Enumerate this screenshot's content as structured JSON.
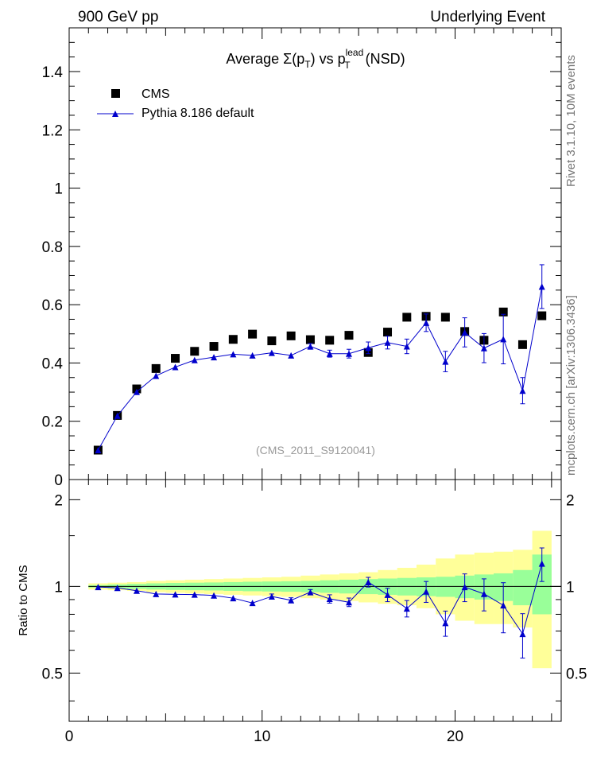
{
  "header": {
    "left": "900 GeV pp",
    "right": "Underlying Event"
  },
  "side_labels": {
    "rivet": "Rivet 3.1.10,  10M events",
    "mcplots": "mcplots.cern.ch [arXiv:1306.3436]"
  },
  "title": {
    "prefix": "Average ",
    "sigma": "Σ(p",
    "sigma_sub": "T",
    "sigma_close": ")",
    "vs": " vs p",
    "lead_sup": "lead",
    "lead_sub": "T",
    "suffix": " (NSD)"
  },
  "watermark": "(CMS_2011_S9120041)",
  "legend": {
    "data_label": "CMS",
    "mc_label": "Pythia 8.186 default"
  },
  "colors": {
    "data": "#000000",
    "mc": "#0000cc",
    "band_inner": "#99ff99",
    "band_outer": "#ffff99"
  },
  "chart_data": [
    {
      "type": "scatter",
      "panel": "main",
      "xlim": [
        0,
        25.5
      ],
      "ylim": [
        0,
        1.55
      ],
      "yticks": [
        0,
        0.2,
        0.4,
        0.6,
        0.8,
        1,
        1.2,
        1.4
      ],
      "ytick_labels": [
        "0",
        "0.2",
        "0.4",
        "0.6",
        "0.8",
        "1",
        "1.2",
        "1.4"
      ],
      "series": [
        {
          "name": "CMS",
          "x": [
            1.5,
            2.5,
            3.5,
            4.5,
            5.5,
            6.5,
            7.5,
            8.5,
            9.5,
            10.5,
            11.5,
            12.5,
            13.5,
            14.5,
            15.5,
            16.5,
            17.5,
            18.5,
            19.5,
            20.5,
            21.5,
            22.5,
            23.5,
            24.5
          ],
          "y": [
            0.101,
            0.22,
            0.311,
            0.381,
            0.416,
            0.44,
            0.457,
            0.481,
            0.499,
            0.476,
            0.493,
            0.48,
            0.478,
            0.495,
            0.436,
            0.506,
            0.557,
            0.56,
            0.557,
            0.508,
            0.478,
            0.575,
            0.463,
            0.562
          ]
        },
        {
          "name": "Pythia 8.186 default",
          "x": [
            1.5,
            2.5,
            3.5,
            4.5,
            5.5,
            6.5,
            7.5,
            8.5,
            9.5,
            10.5,
            11.5,
            12.5,
            13.5,
            14.5,
            15.5,
            16.5,
            17.5,
            18.5,
            19.5,
            20.5,
            21.5,
            22.5,
            23.5,
            24.5
          ],
          "y": [
            0.101,
            0.219,
            0.301,
            0.356,
            0.386,
            0.41,
            0.42,
            0.43,
            0.426,
            0.435,
            0.426,
            0.457,
            0.432,
            0.432,
            0.452,
            0.47,
            0.457,
            0.538,
            0.405,
            0.505,
            0.451,
            0.482,
            0.305,
            0.662
          ],
          "yerr": [
            0.002,
            0.002,
            0.003,
            0.004,
            0.004,
            0.004,
            0.005,
            0.006,
            0.006,
            0.007,
            0.008,
            0.01,
            0.012,
            0.015,
            0.02,
            0.022,
            0.025,
            0.03,
            0.035,
            0.05,
            0.05,
            0.085,
            0.045,
            0.075
          ]
        }
      ]
    },
    {
      "type": "scatter",
      "panel": "ratio",
      "ylabel": "Ratio to CMS",
      "xlim": [
        0,
        25.5
      ],
      "ylim": [
        0.34,
        2.35
      ],
      "yticks": [
        0.5,
        1,
        2
      ],
      "ytick_labels": [
        "0.5",
        "1",
        "2"
      ],
      "xticks": [
        0,
        10,
        20
      ],
      "xtick_labels": [
        "0",
        "10",
        "20"
      ],
      "series": [
        {
          "name": "Pythia 8.186 default",
          "x": [
            1.5,
            2.5,
            3.5,
            4.5,
            5.5,
            6.5,
            7.5,
            8.5,
            9.5,
            10.5,
            11.5,
            12.5,
            13.5,
            14.5,
            15.5,
            16.5,
            17.5,
            18.5,
            19.5,
            20.5,
            21.5,
            22.5,
            23.5,
            24.5
          ],
          "y": [
            0.995,
            0.988,
            0.966,
            0.941,
            0.938,
            0.937,
            0.93,
            0.91,
            0.876,
            0.923,
            0.895,
            0.955,
            0.905,
            0.881,
            1.035,
            0.935,
            0.838,
            0.96,
            0.746,
            0.995,
            0.942,
            0.86,
            0.684,
            1.2
          ],
          "yerr": [
            0.006,
            0.008,
            0.01,
            0.012,
            0.012,
            0.012,
            0.014,
            0.015,
            0.016,
            0.018,
            0.018,
            0.02,
            0.03,
            0.03,
            0.04,
            0.05,
            0.055,
            0.08,
            0.075,
            0.11,
            0.12,
            0.17,
            0.12,
            0.16
          ]
        }
      ],
      "bands": {
        "x_edges": [
          1,
          2,
          3,
          4,
          5,
          6,
          7,
          8,
          9,
          10,
          11,
          12,
          13,
          14,
          15,
          16,
          17,
          18,
          19,
          20,
          21,
          22,
          23,
          24,
          25
        ],
        "inner_lo": [
          0.99,
          0.985,
          0.98,
          0.975,
          0.972,
          0.97,
          0.968,
          0.965,
          0.962,
          0.96,
          0.958,
          0.955,
          0.95,
          0.945,
          0.94,
          0.935,
          0.93,
          0.925,
          0.92,
          0.91,
          0.9,
          0.89,
          0.86,
          0.8
        ],
        "inner_hi": [
          1.01,
          1.015,
          1.02,
          1.025,
          1.028,
          1.03,
          1.032,
          1.035,
          1.038,
          1.04,
          1.042,
          1.045,
          1.05,
          1.055,
          1.06,
          1.065,
          1.07,
          1.075,
          1.08,
          1.09,
          1.1,
          1.11,
          1.14,
          1.29
        ],
        "outer_lo": [
          0.975,
          0.97,
          0.965,
          0.955,
          0.95,
          0.945,
          0.94,
          0.935,
          0.93,
          0.925,
          0.92,
          0.91,
          0.9,
          0.89,
          0.88,
          0.87,
          0.86,
          0.84,
          0.8,
          0.76,
          0.74,
          0.74,
          0.72,
          0.52
        ],
        "outer_hi": [
          1.025,
          1.03,
          1.035,
          1.045,
          1.05,
          1.055,
          1.06,
          1.065,
          1.07,
          1.075,
          1.08,
          1.09,
          1.1,
          1.11,
          1.12,
          1.14,
          1.16,
          1.19,
          1.25,
          1.29,
          1.31,
          1.32,
          1.34,
          1.56
        ]
      }
    }
  ]
}
